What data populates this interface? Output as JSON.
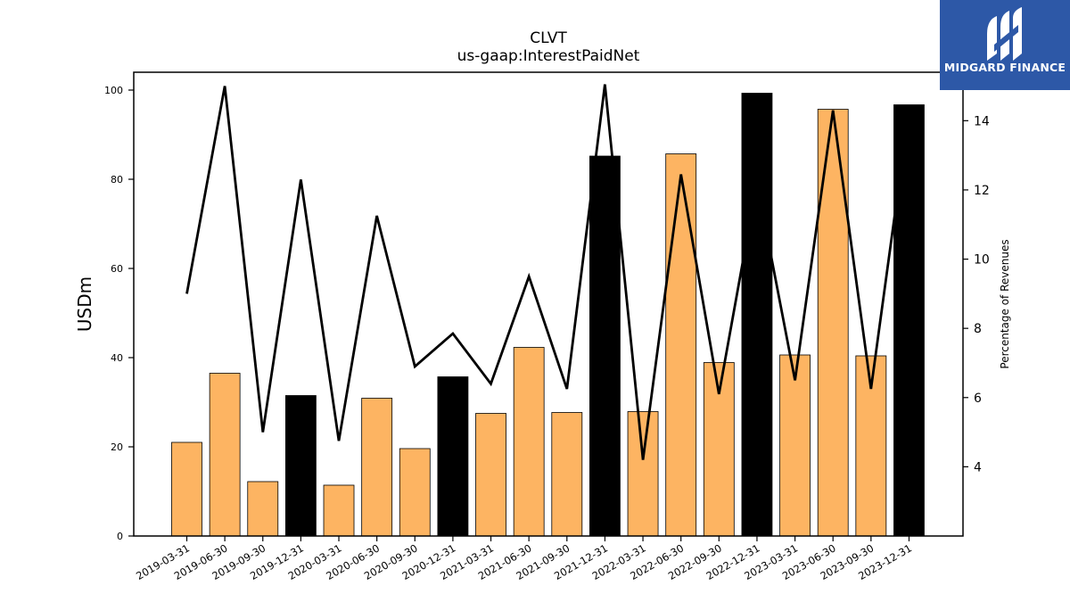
{
  "logo": {
    "text": "MIDGARD FINANCE",
    "background_color": "#2d58a7",
    "icon": "stylized-m-logo-icon"
  },
  "chart_data": {
    "type": "bar",
    "title": "CLVT",
    "subtitle": "us-gaap:InterestPaidNet",
    "ylabel": "USDm",
    "y2label": "Percentage of Revenues",
    "ylim": [
      0,
      104
    ],
    "y2lim": [
      2.0,
      15.4
    ],
    "yticks": [
      0,
      20,
      40,
      60,
      80,
      100
    ],
    "y2ticks": [
      4,
      6,
      8,
      10,
      12,
      14
    ],
    "grid": false,
    "colors": {
      "quarter": "#fdb462",
      "year_end": "#000000",
      "line": "#000000"
    },
    "categories": [
      "2019-03-31",
      "2019-06-30",
      "2019-09-30",
      "2019-12-31",
      "2020-03-31",
      "2020-06-30",
      "2020-09-30",
      "2020-12-31",
      "2021-03-31",
      "2021-06-30",
      "2021-09-30",
      "2021-12-31",
      "2022-03-31",
      "2022-06-30",
      "2022-09-30",
      "2022-12-31",
      "2023-03-31",
      "2023-06-30",
      "2023-09-30",
      "2023-12-31"
    ],
    "series": [
      {
        "type": "bar",
        "values": [
          21.0,
          36.5,
          12.2,
          31.5,
          11.4,
          30.9,
          19.6,
          35.7,
          27.5,
          42.3,
          27.7,
          85.2,
          27.9,
          85.7,
          38.9,
          99.3,
          40.6,
          95.7,
          40.4,
          96.7
        ]
      },
      {
        "type": "line",
        "axis": "right",
        "values": [
          9.0,
          15.0,
          5.0,
          12.3,
          4.75,
          11.25,
          6.9,
          7.85,
          6.4,
          9.5,
          6.25,
          15.05,
          4.2,
          12.45,
          6.1,
          12.2,
          6.5,
          14.3,
          6.25,
          14.3
        ]
      }
    ]
  }
}
